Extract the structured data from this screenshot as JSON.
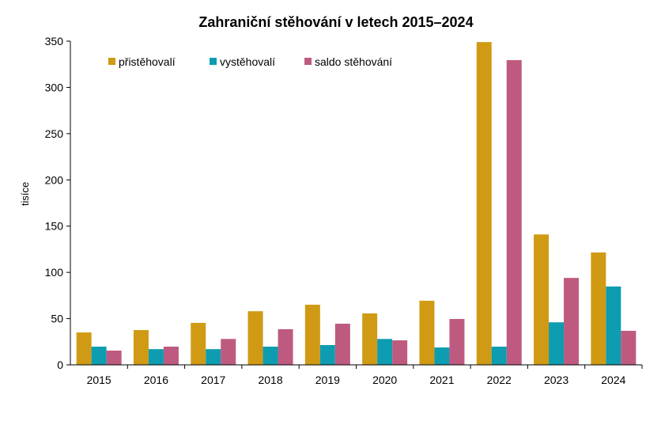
{
  "chart_data": {
    "type": "bar",
    "title": "Zahraniční stěhování v letech 2015–2024",
    "xlabel": "",
    "ylabel": "tisíce",
    "ylim": [
      0,
      350
    ],
    "yticks": [
      0,
      50,
      100,
      150,
      200,
      250,
      300,
      350
    ],
    "grid": false,
    "legend_position": "top-left",
    "categories": [
      "2015",
      "2016",
      "2017",
      "2018",
      "2019",
      "2020",
      "2021",
      "2022",
      "2023",
      "2024"
    ],
    "series": [
      {
        "name": "přistěhovalí",
        "color": "#D09A14",
        "values": [
          35,
          37.6,
          45.4,
          58,
          65,
          55.6,
          69.3,
          349,
          141,
          121.5
        ]
      },
      {
        "name": "vystěhovalí",
        "color": "#0E9CB0",
        "values": [
          19.7,
          17,
          17,
          19.7,
          21.4,
          28,
          18.8,
          19.7,
          46,
          84.7
        ]
      },
      {
        "name": "saldo stěhování",
        "color": "#BE5A80",
        "values": [
          15.4,
          19.7,
          28,
          38.5,
          44.5,
          26.5,
          49.6,
          329.5,
          94,
          36.8
        ]
      }
    ]
  }
}
